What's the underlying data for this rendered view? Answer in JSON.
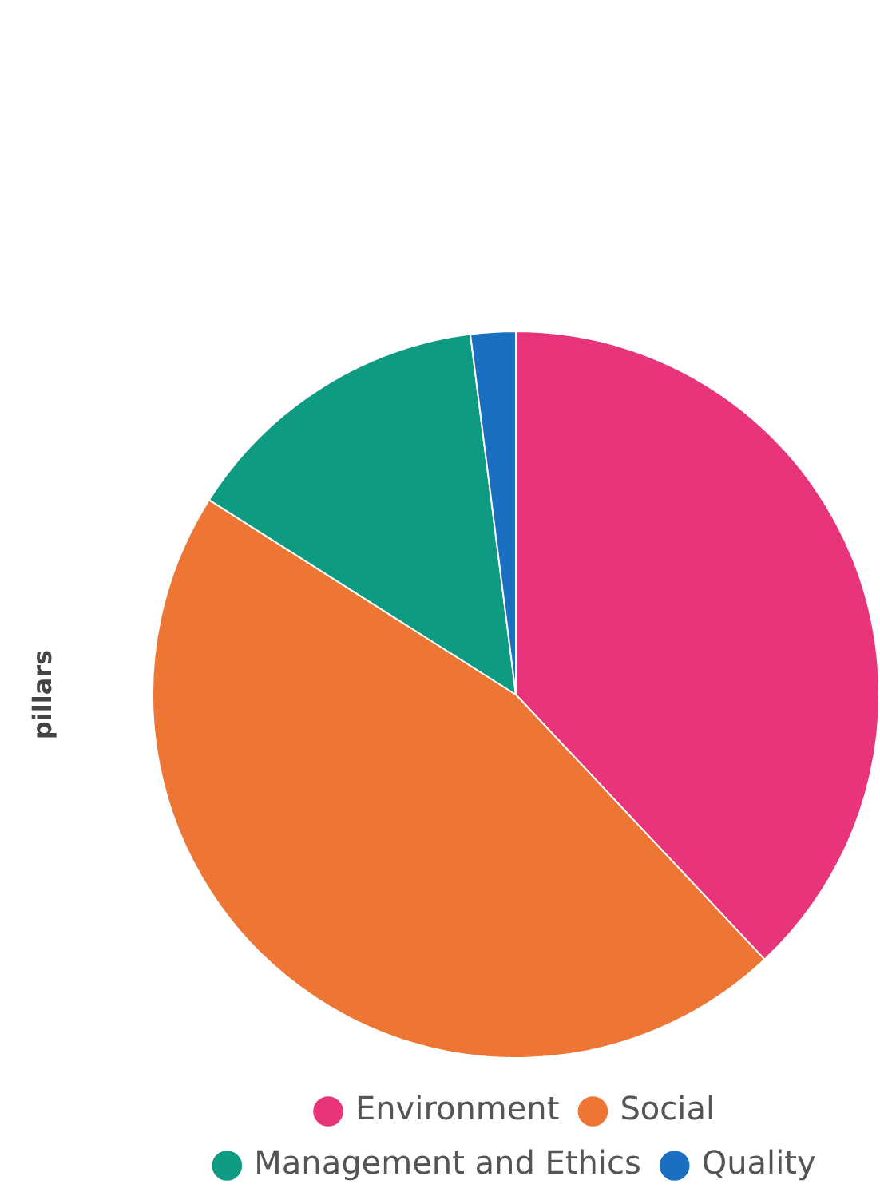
{
  "chart_data": {
    "type": "pie",
    "ylabel": "pillars",
    "categories": [
      "Environment",
      "Social",
      "Management and Ethics",
      "Quality"
    ],
    "values": [
      38,
      46,
      14,
      2
    ],
    "colors": [
      "#e8347a",
      "#ed7634",
      "#0f9a82",
      "#1a6fc0"
    ],
    "legend": "bottom"
  }
}
